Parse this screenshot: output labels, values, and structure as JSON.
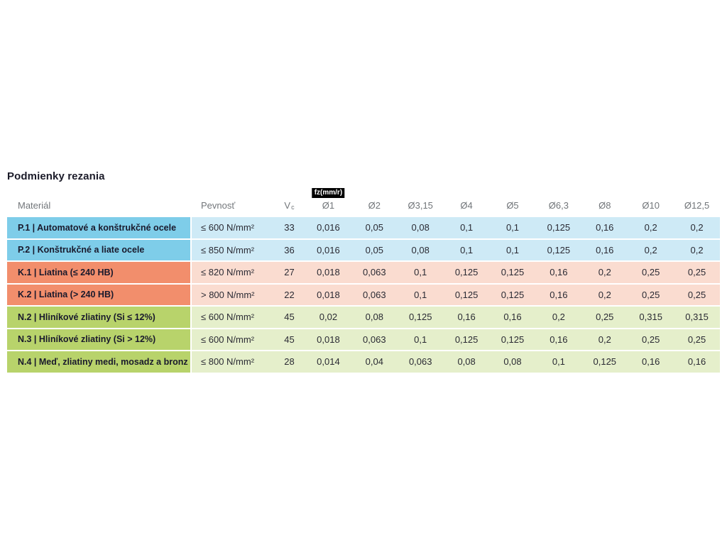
{
  "page": {
    "title": "Podmienky rezania"
  },
  "table": {
    "headers": {
      "material": "Materiál",
      "strength": "Pevnosť",
      "vc_symbol": "V",
      "vc_subscript": "c",
      "fz_badge": "fz(mm/r)",
      "diameters": [
        "Ø1",
        "Ø2",
        "Ø3,15",
        "Ø4",
        "Ø5",
        "Ø6,3",
        "Ø8",
        "Ø10",
        "Ø12,5"
      ]
    },
    "group_colors": {
      "P": {
        "material_bg": "#7ECDE9",
        "row_bg": "#CEEAF6"
      },
      "K": {
        "material_bg": "#F28E6C",
        "row_bg": "#FADCD0"
      },
      "N": {
        "material_bg": "#B8D36B",
        "row_bg": "#E5EFCB"
      }
    },
    "rows": [
      {
        "group": "P",
        "material": "P.1 | Automatové a konštrukčné ocele",
        "strength": "≤ 600 N/mm²",
        "vc": "33",
        "fz": [
          "0,016",
          "0,05",
          "0,08",
          "0,1",
          "0,1",
          "0,125",
          "0,16",
          "0,2",
          "0,2"
        ]
      },
      {
        "group": "P",
        "material": "P.2 | Konštrukčné a liate ocele",
        "strength": "≤ 850 N/mm²",
        "vc": "36",
        "fz": [
          "0,016",
          "0,05",
          "0,08",
          "0,1",
          "0,1",
          "0,125",
          "0,16",
          "0,2",
          "0,2"
        ]
      },
      {
        "group": "K",
        "material": "K.1 | Liatina (≤ 240 HB)",
        "strength": "≤ 820 N/mm²",
        "vc": "27",
        "fz": [
          "0,018",
          "0,063",
          "0,1",
          "0,125",
          "0,125",
          "0,16",
          "0,2",
          "0,25",
          "0,25"
        ]
      },
      {
        "group": "K",
        "material": "K.2 | Liatina (> 240 HB)",
        "strength": "> 800 N/mm²",
        "vc": "22",
        "fz": [
          "0,018",
          "0,063",
          "0,1",
          "0,125",
          "0,125",
          "0,16",
          "0,2",
          "0,25",
          "0,25"
        ]
      },
      {
        "group": "N",
        "material": "N.2 | Hliníkové zliatiny (Si ≤ 12%)",
        "strength": "≤ 600 N/mm²",
        "vc": "45",
        "fz": [
          "0,02",
          "0,08",
          "0,125",
          "0,16",
          "0,16",
          "0,2",
          "0,25",
          "0,315",
          "0,315"
        ]
      },
      {
        "group": "N",
        "material": "N.3 | Hliníkové zliatiny (Si > 12%)",
        "strength": "≤ 600 N/mm²",
        "vc": "45",
        "fz": [
          "0,018",
          "0,063",
          "0,1",
          "0,125",
          "0,125",
          "0,16",
          "0,2",
          "0,25",
          "0,25"
        ]
      },
      {
        "group": "N",
        "material": "N.4 | Meď, zliatiny medi, mosadz a bronz",
        "strength": "≤ 800 N/mm²",
        "vc": "28",
        "fz": [
          "0,014",
          "0,04",
          "0,063",
          "0,08",
          "0,08",
          "0,1",
          "0,125",
          "0,16",
          "0,16"
        ]
      }
    ]
  }
}
